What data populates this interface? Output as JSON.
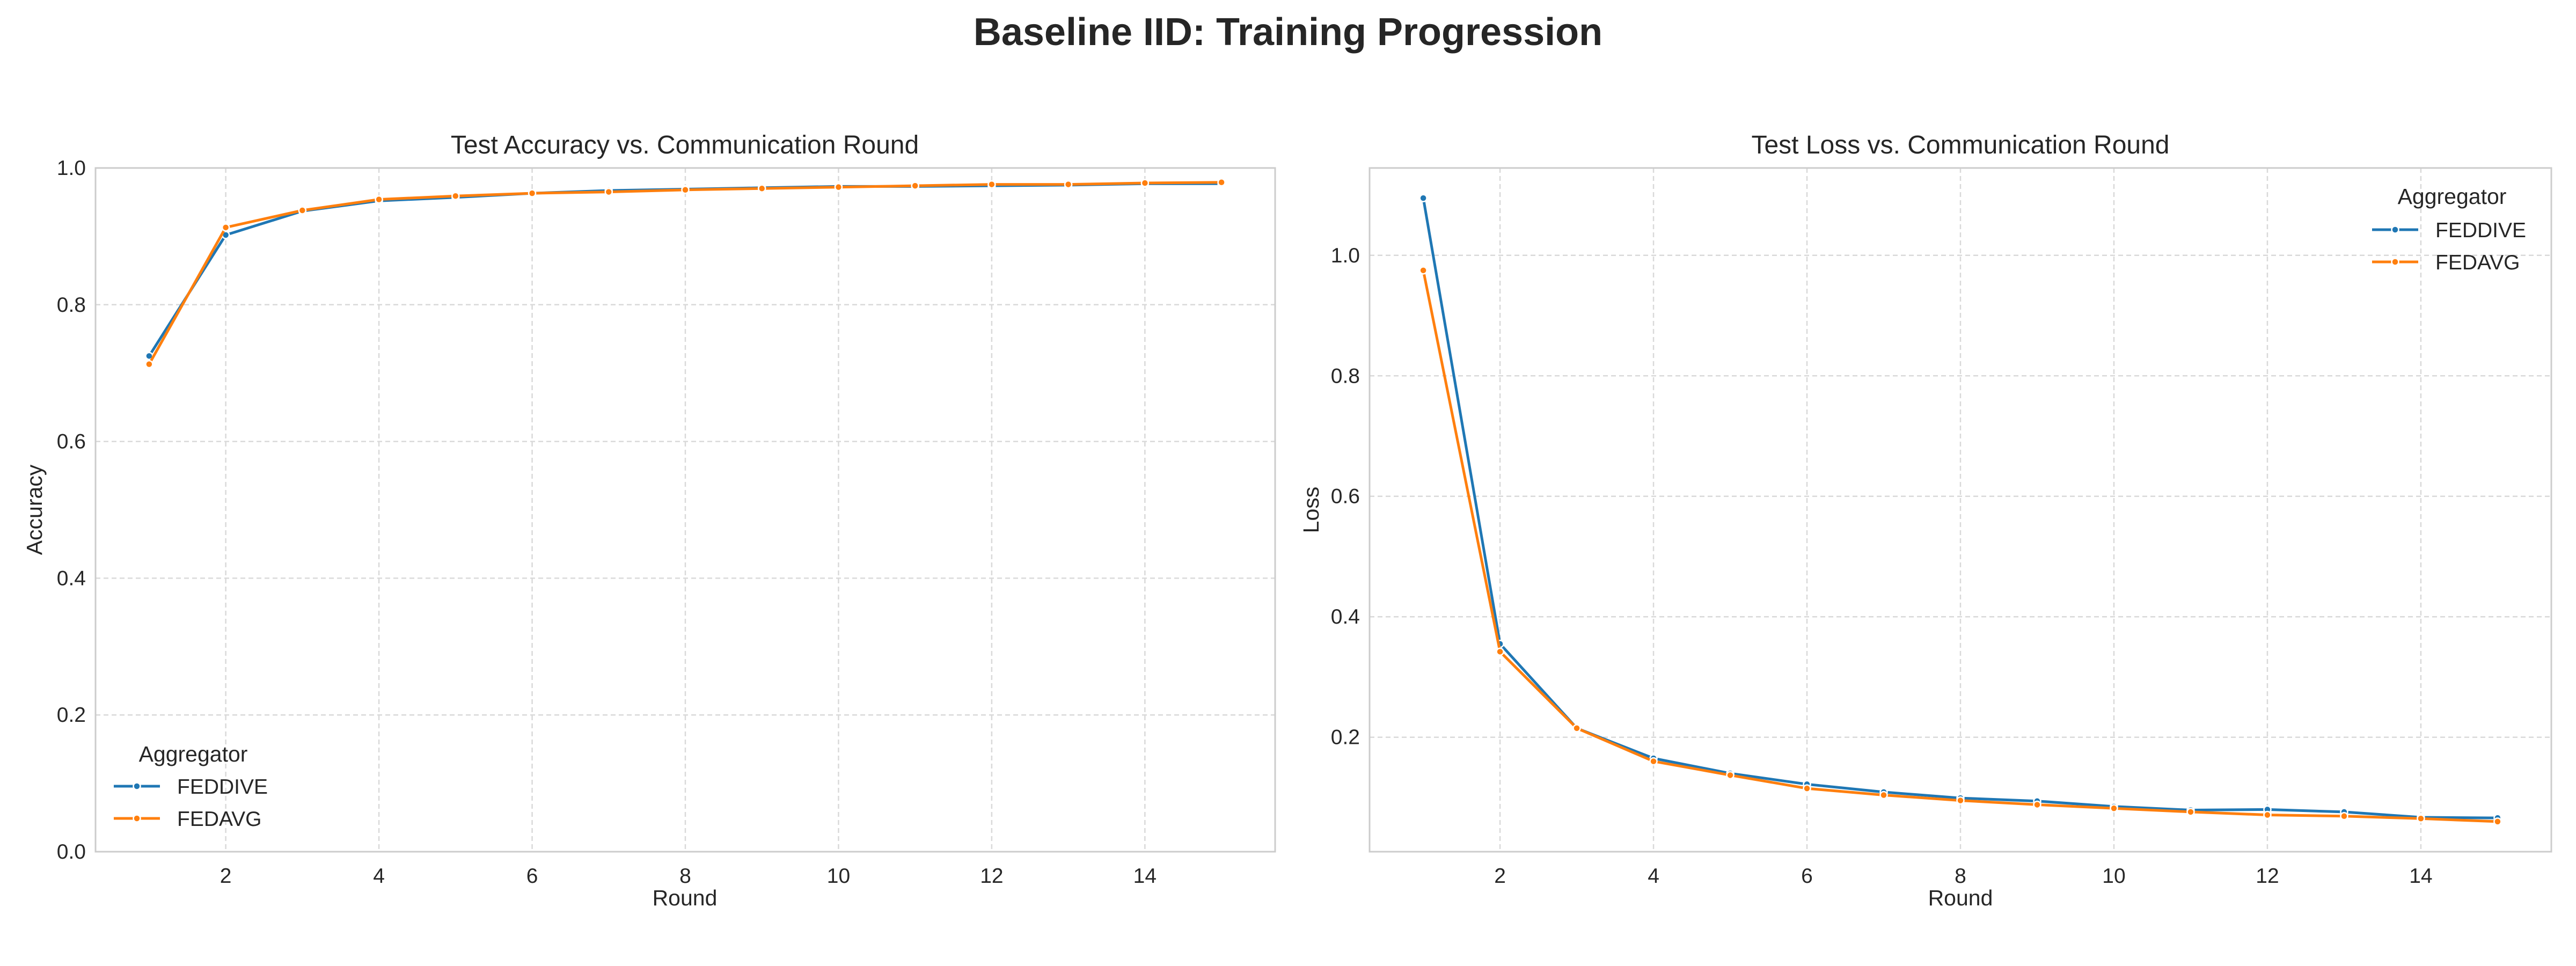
{
  "figure": {
    "suptitle": "Baseline IID: Training Progression"
  },
  "colors": {
    "FEDDIVE": "#1f77b4",
    "FEDAVG": "#ff7f0e",
    "grid": "#d9d9d9",
    "spine": "#cccccc"
  },
  "chart_data": [
    {
      "type": "line",
      "title": "Test Accuracy vs. Communication Round",
      "xlabel": "Round",
      "ylabel": "Accuracy",
      "xlim": [
        0.3,
        15.7
      ],
      "ylim": [
        0.0,
        1.0
      ],
      "xticks": [
        2,
        4,
        6,
        8,
        10,
        12,
        14
      ],
      "yticks": [
        0.0,
        0.2,
        0.4,
        0.6,
        0.8,
        1.0
      ],
      "ytick_labels": [
        "0.0",
        "0.2",
        "0.4",
        "0.6",
        "0.8",
        "1.0"
      ],
      "grid": true,
      "legend": {
        "title": "Aggregator",
        "position": "lower-left"
      },
      "x": [
        1,
        2,
        3,
        4,
        5,
        6,
        7,
        8,
        9,
        10,
        11,
        12,
        13,
        14,
        15
      ],
      "series": [
        {
          "name": "FEDDIVE",
          "values": [
            0.725,
            0.902,
            0.937,
            0.952,
            0.957,
            0.963,
            0.967,
            0.969,
            0.971,
            0.973,
            0.973,
            0.974,
            0.975,
            0.977,
            0.977
          ]
        },
        {
          "name": "FEDAVG",
          "values": [
            0.713,
            0.913,
            0.938,
            0.954,
            0.959,
            0.963,
            0.965,
            0.968,
            0.97,
            0.972,
            0.974,
            0.976,
            0.976,
            0.978,
            0.979
          ]
        }
      ]
    },
    {
      "type": "line",
      "title": "Test Loss vs. Communication Round",
      "xlabel": "Round",
      "ylabel": "Loss",
      "xlim": [
        0.3,
        15.7
      ],
      "ylim": [
        0.01,
        1.145
      ],
      "xticks": [
        2,
        4,
        6,
        8,
        10,
        12,
        14
      ],
      "yticks": [
        0.2,
        0.4,
        0.6,
        0.8,
        1.0
      ],
      "ytick_labels": [
        "0.2",
        "0.4",
        "0.6",
        "0.8",
        "1.0"
      ],
      "grid": true,
      "legend": {
        "title": "Aggregator",
        "position": "upper-right"
      },
      "x": [
        1,
        2,
        3,
        4,
        5,
        6,
        7,
        8,
        9,
        10,
        11,
        12,
        13,
        14,
        15
      ],
      "series": [
        {
          "name": "FEDDIVE",
          "values": [
            1.095,
            0.355,
            0.215,
            0.165,
            0.14,
            0.122,
            0.109,
            0.099,
            0.094,
            0.085,
            0.079,
            0.08,
            0.076,
            0.067,
            0.066
          ]
        },
        {
          "name": "FEDAVG",
          "values": [
            0.975,
            0.342,
            0.215,
            0.16,
            0.137,
            0.115,
            0.104,
            0.095,
            0.088,
            0.082,
            0.076,
            0.071,
            0.069,
            0.065,
            0.06
          ]
        }
      ]
    }
  ]
}
